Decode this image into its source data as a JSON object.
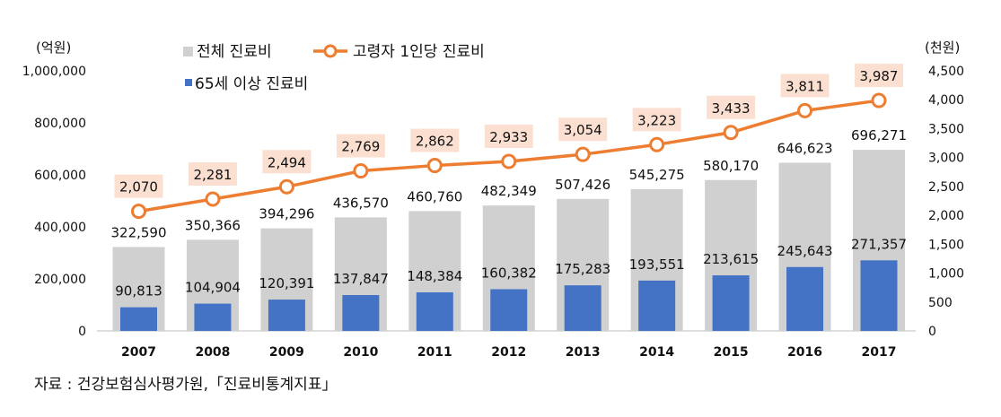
{
  "chart_data": {
    "type": "bar",
    "categories": [
      "2007",
      "2008",
      "2009",
      "2010",
      "2011",
      "2012",
      "2013",
      "2014",
      "2015",
      "2016",
      "2017"
    ],
    "series": [
      {
        "name": "전체 진료비",
        "type": "bar",
        "axis": "left",
        "color": "#d0d0d0",
        "values": [
          322590,
          350366,
          394296,
          436570,
          460760,
          482349,
          507426,
          545275,
          580170,
          646623,
          696271
        ],
        "labels": [
          "322,590",
          "350,366",
          "394,296",
          "436,570",
          "460,760",
          "482,349",
          "507,426",
          "545,275",
          "580,170",
          "646,623",
          "696,271"
        ]
      },
      {
        "name": "65세 이상 진료비",
        "type": "bar",
        "axis": "left",
        "color": "#4472c4",
        "values": [
          90813,
          104904,
          120391,
          137847,
          148384,
          160382,
          175283,
          193551,
          213615,
          245643,
          271357
        ],
        "labels": [
          "90,813",
          "104,904",
          "120,391",
          "137,847",
          "148,384",
          "160,382",
          "175,283",
          "193,551",
          "213,615",
          "245,643",
          "271,357"
        ]
      },
      {
        "name": "고령자 1인당 진료비",
        "type": "line",
        "axis": "right",
        "color": "#ed7d31",
        "values": [
          2070,
          2281,
          2494,
          2769,
          2862,
          2933,
          3054,
          3223,
          3433,
          3811,
          3987
        ],
        "labels": [
          "2,070",
          "2,281",
          "2,494",
          "2,769",
          "2,862",
          "2,933",
          "3,054",
          "3,223",
          "3,433",
          "3,811",
          "3,987"
        ]
      }
    ],
    "y_left": {
      "unit": "(억원)",
      "ylim": [
        0,
        1000000
      ],
      "ticks": [
        "0",
        "200,000",
        "400,000",
        "600,000",
        "800,000",
        "1,000,000"
      ]
    },
    "y_right": {
      "unit": "(천원)",
      "ylim": [
        0,
        4500
      ],
      "ticks": [
        "0",
        "500",
        "1,000",
        "1,500",
        "2,000",
        "2,500",
        "3,000",
        "3,500",
        "4,000",
        "4,500"
      ]
    },
    "grid": false,
    "legend": "top"
  },
  "source": "자료 : 건강보험심사평가원,「진료비통계지표」"
}
